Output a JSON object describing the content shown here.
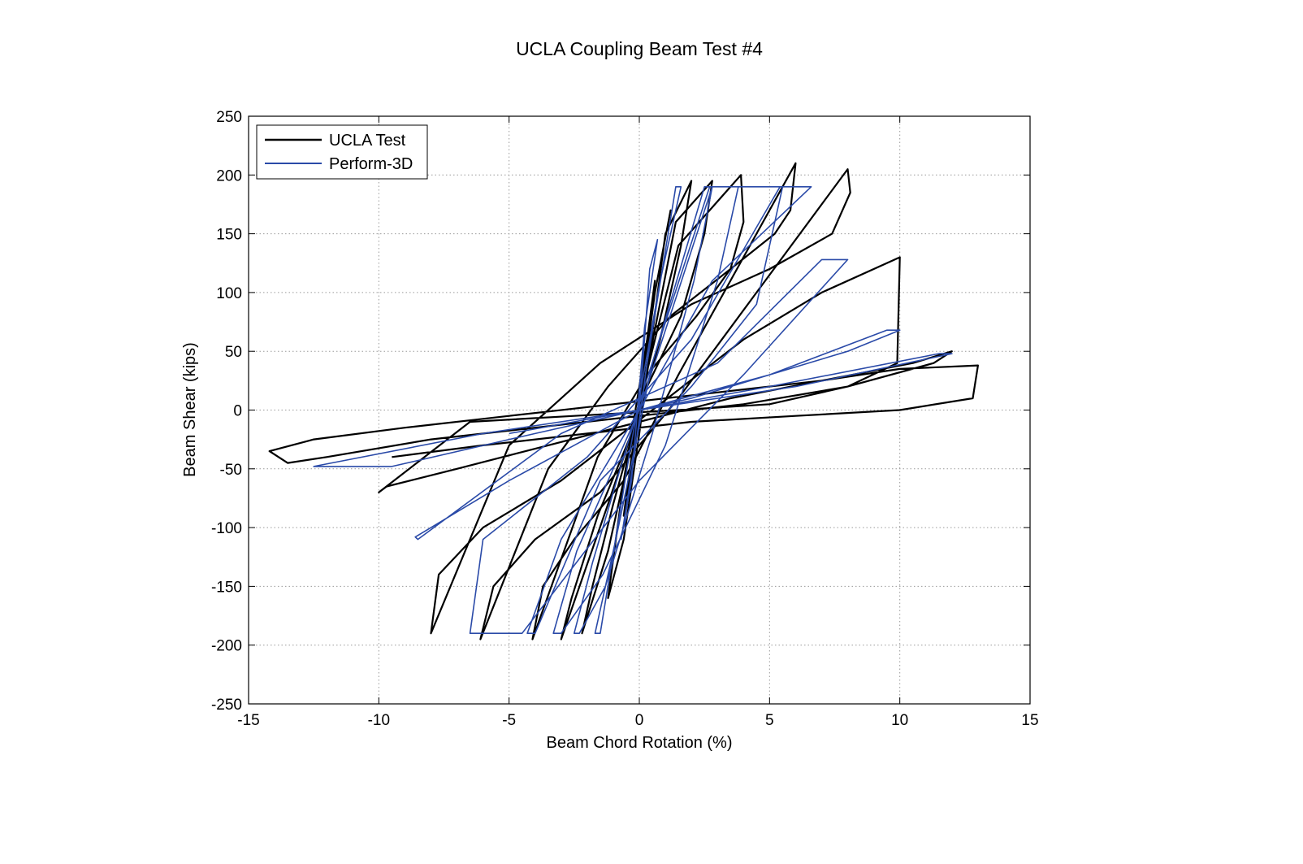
{
  "chart_data": {
    "type": "line",
    "title": "UCLA Coupling Beam Test #4",
    "xlabel": "Beam Chord Rotation (%)",
    "ylabel": "Beam Shear (kips)",
    "xlim": [
      -15,
      15
    ],
    "ylim": [
      -250,
      250
    ],
    "xticks": [
      -15,
      -10,
      -5,
      0,
      5,
      10,
      15
    ],
    "yticks": [
      -250,
      -200,
      -150,
      -100,
      -50,
      0,
      50,
      100,
      150,
      200,
      250
    ],
    "xtick_labels": [
      "-15",
      "-10",
      "-5",
      "0",
      "5",
      "10",
      "15"
    ],
    "ytick_labels": [
      "-250",
      "-200",
      "-150",
      "-100",
      "-50",
      "0",
      "50",
      "100",
      "150",
      "200",
      "250"
    ],
    "grid": true,
    "legend_position": "top-left",
    "series": [
      {
        "name": "UCLA Test",
        "color": "#000000",
        "x": [
          0,
          0.3,
          0.6,
          0.3,
          0,
          -0.3,
          -0.6,
          -0.3,
          0,
          0.6,
          1.2,
          0.6,
          0,
          -0.6,
          -1.2,
          -0.6,
          0,
          1.0,
          2.0,
          1.6,
          0.8,
          -0.2,
          -1.2,
          -2.2,
          -1.8,
          -1.0,
          0,
          1.4,
          2.8,
          2.5,
          1.6,
          0.3,
          -1.2,
          -3.0,
          -2.6,
          -1.6,
          -0.3,
          1.5,
          3.9,
          4.0,
          3.5,
          2.2,
          0.3,
          -1.6,
          -4.1,
          -3.7,
          -2.5,
          -0.6,
          1.5,
          3.5,
          6.0,
          5.8,
          5.2,
          3.5,
          1.2,
          -1.2,
          -3.5,
          -6.1,
          -5.6,
          -4.0,
          -1.5,
          1.5,
          4.5,
          8.0,
          8.1,
          7.4,
          5.0,
          2.0,
          -1.5,
          -5.0,
          -8.0,
          -7.7,
          -6.0,
          -3.0,
          0.5,
          4.0,
          7.0,
          10.0,
          9.9,
          8.0,
          5.0,
          1.5,
          -2.5,
          -6.5,
          -10.0,
          -9.7,
          -7.0,
          -3.5,
          0.0,
          3.5,
          7.0,
          10.5,
          12.0,
          11.3,
          8.0,
          4.0,
          0.0,
          -4.0,
          -8.0,
          -12.0,
          -13.5,
          -14.2,
          -12.5,
          -9.0,
          -5.0,
          -1.0,
          3.0,
          7.0,
          10.0,
          13.0,
          12.8,
          10.0,
          6.0,
          2.0,
          -2.0,
          -6.0,
          -9.5
        ],
        "y": [
          0,
          60,
          110,
          50,
          0,
          -50,
          -90,
          -40,
          0,
          100,
          170,
          100,
          20,
          -60,
          -160,
          -110,
          -20,
          150,
          195,
          140,
          60,
          -20,
          -120,
          -190,
          -150,
          -80,
          0,
          160,
          195,
          150,
          80,
          20,
          -80,
          -195,
          -160,
          -90,
          -20,
          140,
          200,
          160,
          120,
          80,
          30,
          -40,
          -195,
          -150,
          -110,
          -60,
          30,
          110,
          210,
          170,
          150,
          120,
          80,
          20,
          -50,
          -195,
          -150,
          -110,
          -70,
          10,
          100,
          205,
          185,
          150,
          120,
          90,
          40,
          -30,
          -190,
          -140,
          -100,
          -60,
          0,
          60,
          100,
          130,
          40,
          20,
          5,
          0,
          -5,
          -10,
          -70,
          -65,
          -50,
          -30,
          -10,
          10,
          25,
          40,
          50,
          40,
          20,
          5,
          -5,
          -15,
          -25,
          -40,
          -45,
          -35,
          -25,
          -15,
          -5,
          5,
          15,
          25,
          35,
          38,
          10,
          0,
          -5,
          -10,
          -20,
          -30,
          -40
        ]
      },
      {
        "name": "Perform-3D",
        "color": "#2a4aa8",
        "x": [
          0,
          0.4,
          0.7,
          0.2,
          -0.3,
          -0.7,
          -0.2,
          0.3,
          1.4,
          1.6,
          0.8,
          -0.4,
          -1.5,
          -1.7,
          -0.9,
          0.5,
          2.5,
          2.8,
          2.1,
          0.5,
          -1.3,
          -2.3,
          -2.5,
          -1.8,
          0.2,
          2.7,
          3.8,
          3.0,
          1.0,
          -1.4,
          -3.0,
          -3.3,
          -2.4,
          0.0,
          2.8,
          5.5,
          4.5,
          2.0,
          -1.5,
          -4.0,
          -4.3,
          -3.0,
          0.0,
          2.8,
          6.6,
          5.4,
          2.0,
          -2.0,
          -6.0,
          -6.5,
          -4.5,
          0.0,
          4.0,
          8.0,
          7.0,
          3.0,
          -3.0,
          -8.5,
          -8.6,
          -5.0,
          0.0,
          5.0,
          9.5,
          10.0,
          8.0,
          2.0,
          -4.0,
          -9.5,
          -10.2,
          -12.5,
          -6.0,
          0.0,
          6.0,
          12.0,
          11.5,
          5.0,
          0.0,
          -5.0
        ],
        "y": [
          0,
          120,
          145,
          70,
          -60,
          -110,
          -40,
          40,
          190,
          190,
          110,
          -40,
          -190,
          -190,
          -110,
          40,
          190,
          190,
          110,
          -20,
          -150,
          -190,
          -190,
          -130,
          20,
          190,
          190,
          110,
          -30,
          -140,
          -190,
          -190,
          -120,
          0,
          190,
          190,
          90,
          20,
          -60,
          -190,
          -190,
          -110,
          0,
          110,
          190,
          190,
          60,
          -40,
          -110,
          -190,
          -190,
          -60,
          30,
          128,
          128,
          40,
          -20,
          -110,
          -108,
          -60,
          0,
          30,
          68,
          68,
          50,
          10,
          -20,
          -48,
          -48,
          -48,
          -20,
          0,
          20,
          48,
          48,
          20,
          0,
          -20
        ]
      }
    ]
  }
}
